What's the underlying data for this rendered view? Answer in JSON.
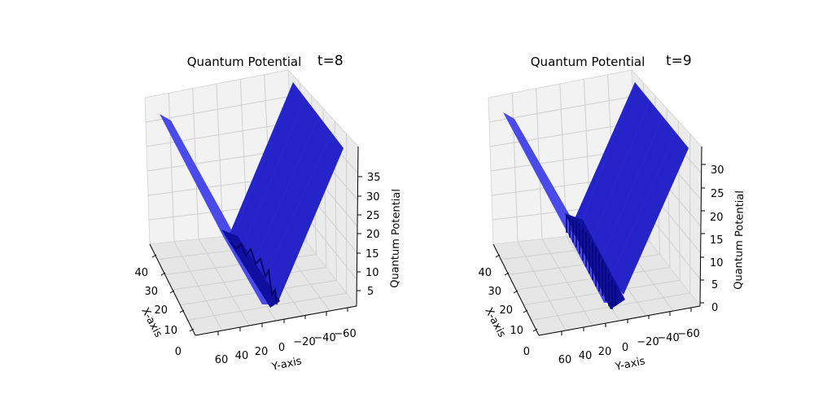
{
  "chart_data": [
    {
      "type": "surface3d",
      "title": "Quantum Potential",
      "time_label": "t=8",
      "xlabel": "X-axis",
      "ylabel": "Y-axis",
      "zlabel": "Quantum Potential",
      "x_ticks": [
        "0",
        "10",
        "20",
        "30",
        "40"
      ],
      "y_ticks": [
        "60",
        "40",
        "20",
        "0",
        "−20",
        "−40",
        "−60"
      ],
      "z_ticks": [
        "5",
        "10",
        "15",
        "20",
        "25",
        "30",
        "35"
      ],
      "xlim": [
        0,
        45
      ],
      "ylim": [
        -70,
        70
      ],
      "zlim": [
        2,
        39
      ],
      "surface_color": "#2222cc",
      "grid": true
    },
    {
      "type": "surface3d",
      "title": "Quantum Potential",
      "time_label": "t=9",
      "xlabel": "X-axis",
      "ylabel": "Y-axis",
      "zlabel": "Quantum Potential",
      "x_ticks": [
        "0",
        "10",
        "20",
        "30",
        "40"
      ],
      "y_ticks": [
        "60",
        "40",
        "20",
        "0",
        "−20",
        "−40",
        "−60"
      ],
      "z_ticks": [
        "0",
        "5",
        "10",
        "15",
        "20",
        "25",
        "30"
      ],
      "xlim": [
        0,
        45
      ],
      "ylim": [
        -70,
        70
      ],
      "zlim": [
        0,
        32
      ],
      "surface_color": "#2222cc",
      "grid": true
    }
  ]
}
